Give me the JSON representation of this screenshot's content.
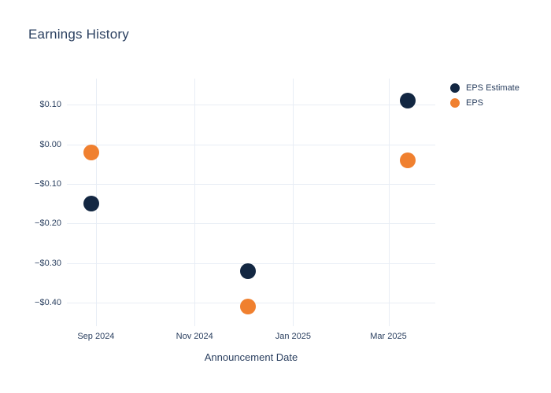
{
  "styles": {
    "text_color": "#2a3f5f",
    "grid_color": "#e8edf5",
    "background": "#ffffff"
  },
  "chart_data": {
    "type": "scatter",
    "title": "Earnings History",
    "xlabel": "Announcement Date",
    "ylabel": "",
    "grid": true,
    "legend_position": "outside-top-right",
    "x_range": [
      "2024-08-14",
      "2025-03-30"
    ],
    "y_range": [
      -0.46,
      0.166
    ],
    "x_ticks": [
      {
        "date": "2024-09-01",
        "label": "Sep 2024"
      },
      {
        "date": "2024-11-01",
        "label": "Nov 2024"
      },
      {
        "date": "2025-01-01",
        "label": "Jan 2025"
      },
      {
        "date": "2025-03-01",
        "label": "Mar 2025"
      }
    ],
    "y_ticks": [
      {
        "value": 0.1,
        "label": "$0.10"
      },
      {
        "value": 0.0,
        "label": "$0.00"
      },
      {
        "value": -0.1,
        "label": "−$0.10"
      },
      {
        "value": -0.2,
        "label": "−$0.20"
      },
      {
        "value": -0.3,
        "label": "−$0.30"
      },
      {
        "value": -0.4,
        "label": "−$0.40"
      }
    ],
    "series": [
      {
        "name": "EPS Estimate",
        "color": "#132742",
        "marker_size": 20,
        "points": [
          {
            "date": "2024-08-29",
            "value": -0.15
          },
          {
            "date": "2024-12-04",
            "value": -0.32
          },
          {
            "date": "2025-03-13",
            "value": 0.11
          }
        ]
      },
      {
        "name": "EPS",
        "color": "#f0802f",
        "marker_size": 20,
        "points": [
          {
            "date": "2024-08-29",
            "value": -0.02
          },
          {
            "date": "2024-12-04",
            "value": -0.41
          },
          {
            "date": "2025-03-13",
            "value": -0.04
          }
        ]
      }
    ]
  }
}
